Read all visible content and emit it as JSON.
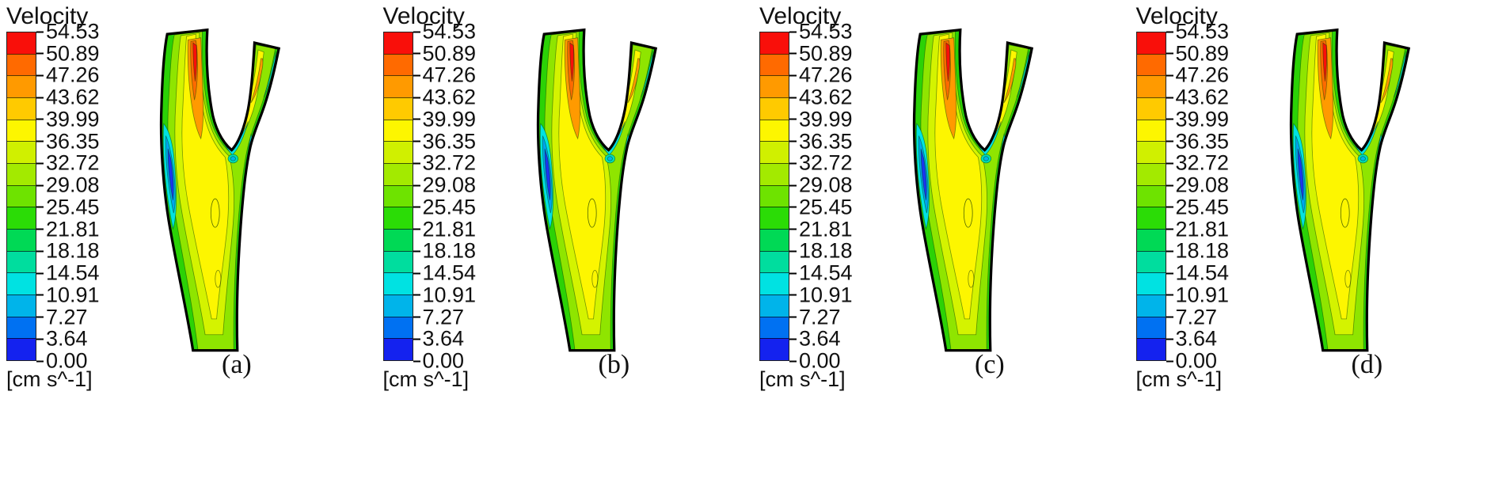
{
  "figure": {
    "title": "Velocity",
    "unit": "[cm s^-1]",
    "ticks": [
      "54.53",
      "50.89",
      "47.26",
      "43.62",
      "39.99",
      "36.35",
      "32.72",
      "29.08",
      "25.45",
      "21.81",
      "18.18",
      "14.54",
      "10.91",
      "7.27",
      "3.64",
      "0.00"
    ],
    "band_colors": [
      "#f90f0a",
      "#ff6a00",
      "#ff9a00",
      "#ffca00",
      "#fdf600",
      "#d0f000",
      "#a3ea00",
      "#6ee300",
      "#2bdc06",
      "#00d955",
      "#00dd9e",
      "#00e2e2",
      "#00b4ea",
      "#0071f2",
      "#1422ef"
    ]
  },
  "panels": [
    {
      "label": "(a)"
    },
    {
      "label": "(b)"
    },
    {
      "label": "(c)"
    },
    {
      "label": "(d)"
    }
  ],
  "chart_data": {
    "type": "heatmap",
    "title": "Velocity",
    "unit": "[cm s^-1]",
    "colorbar_ticks": [
      54.53,
      50.89,
      47.26,
      43.62,
      39.99,
      36.35,
      32.72,
      29.08,
      25.45,
      21.81,
      18.18,
      14.54,
      10.91,
      7.27,
      3.64,
      0.0
    ],
    "colorbar_range": [
      0.0,
      54.53
    ],
    "colormap_top_to_bottom": [
      "#f90f0a",
      "#ff6a00",
      "#ff9a00",
      "#ffca00",
      "#fdf600",
      "#d0f000",
      "#a3ea00",
      "#6ee300",
      "#2bdc06",
      "#00d955",
      "#00dd9e",
      "#00e2e2",
      "#00b4ea",
      "#0071f2",
      "#1422ef"
    ],
    "panels": [
      "(a)",
      "(b)",
      "(c)",
      "(d)"
    ],
    "plot_description": "Four nearly identical velocity-magnitude contour maps of a Y-shaped arterial bifurcation. High velocity (red/orange, about 44-55 cm/s) appears in the upper left branch and along the right branch; mid velocities (yellow/yellow-green, about 25-43 cm/s) fill the vessel core; low velocities (cyan/blue, 0-18 cm/s) line the walls near the bifurcation and along the left wall recirculation zone."
  }
}
